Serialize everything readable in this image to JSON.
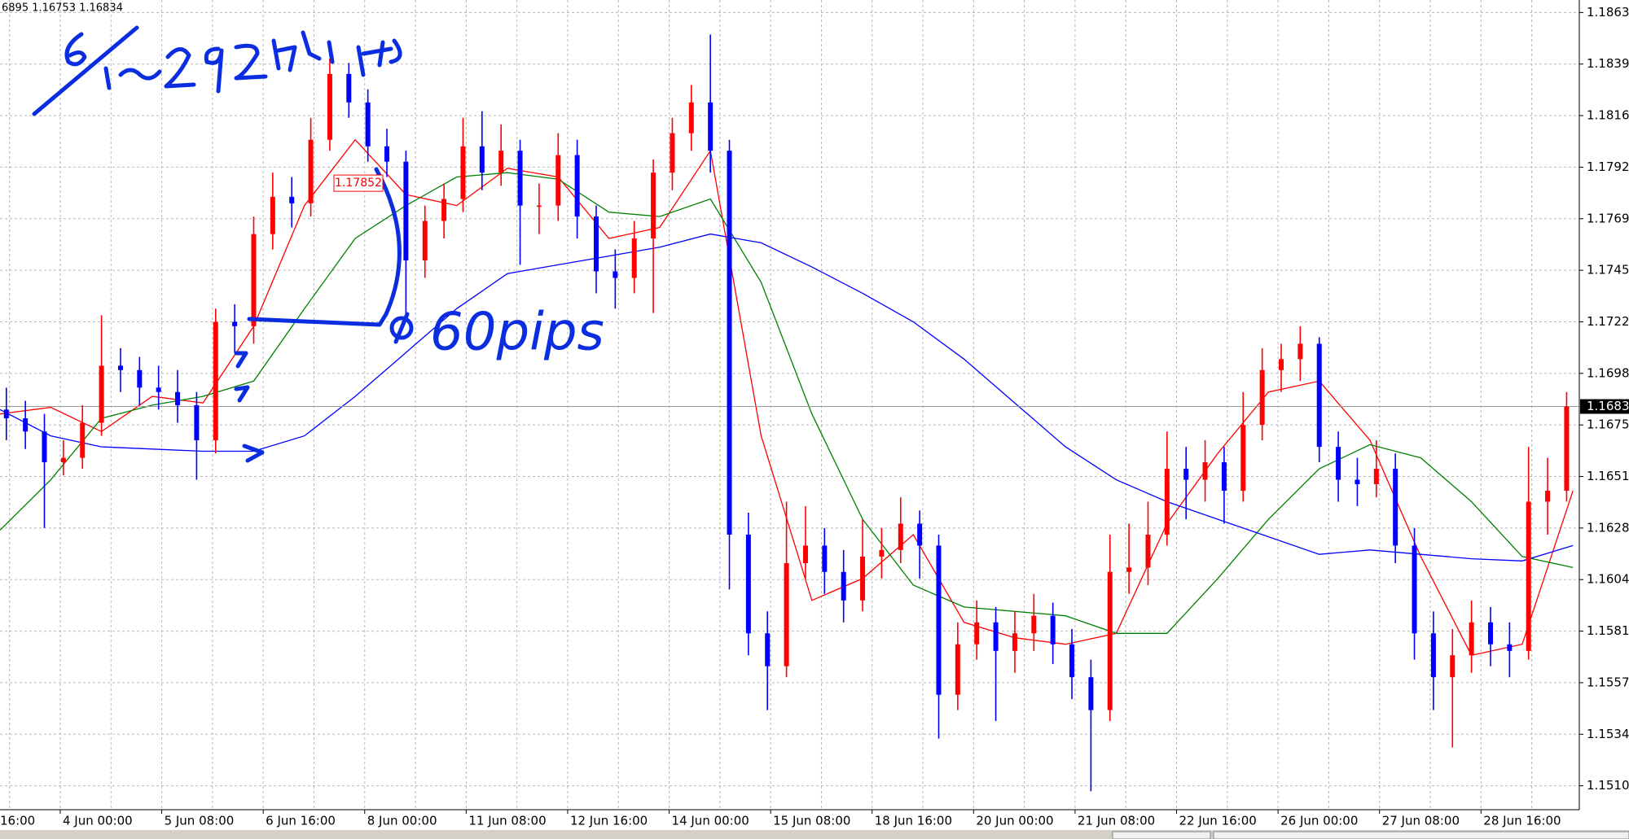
{
  "chart_data": {
    "type": "candlestick",
    "header": "6895 1.16753 1.16834",
    "xlim": [
      0,
      249
    ],
    "ylim": [
      1.14996,
      1.18687
    ],
    "xticks": [
      {
        "value": -6.5,
        "label": "16:00"
      },
      {
        "value": 9.5,
        "label": "4 Jun 00:00"
      },
      {
        "value": 25.5,
        "label": "5 Jun 08:00"
      },
      {
        "value": 41.5,
        "label": "6 Jun 16:00"
      },
      {
        "value": 57.5,
        "label": "8 Jun 00:00"
      },
      {
        "value": 73.5,
        "label": "11 Jun 08:00"
      },
      {
        "value": 89.5,
        "label": "12 Jun 16:00"
      },
      {
        "value": 105.5,
        "label": "14 Jun 00:00"
      },
      {
        "value": 121.5,
        "label": "15 Jun 08:00"
      },
      {
        "value": 137.5,
        "label": "18 Jun 16:00"
      },
      {
        "value": 153.5,
        "label": "20 Jun 00:00"
      },
      {
        "value": 169.5,
        "label": "21 Jun 08:00"
      },
      {
        "value": 185.5,
        "label": "22 Jun 16:00"
      },
      {
        "value": 201.5,
        "label": "26 Jun 00:00"
      },
      {
        "value": 217.5,
        "label": "27 Jun 08:00"
      },
      {
        "value": 233.5,
        "label": "28 Jun 16:00"
      }
    ],
    "yticks": [
      {
        "value": 1.1863,
        "label": "1.18630"
      },
      1.18395,
      {
        "value": 1.1816,
        "label": "1.18160"
      },
      1.17925,
      {
        "value": 1.1769,
        "label": "1.17690"
      },
      1.17455,
      {
        "value": 1.1722,
        "label": "1.17220"
      },
      1.16985,
      {
        "value": 1.1675,
        "label": "1.16750"
      },
      1.16515,
      {
        "value": 1.1628,
        "label": "1.16280"
      },
      1.16045,
      {
        "value": 1.1581,
        "label": "1.15810"
      },
      1.15575,
      {
        "value": 1.1534,
        "label": "1.15340"
      },
      1.15105
    ],
    "grid": true,
    "up_color": "#ff0000",
    "down_color": "#0000ff",
    "x": [
      1,
      4,
      7,
      10,
      13,
      16,
      19,
      22,
      25,
      28,
      31,
      34,
      37,
      40,
      43,
      46,
      49,
      52,
      55,
      58,
      61,
      64,
      67,
      70,
      73,
      76,
      79,
      82,
      85,
      88,
      91,
      94,
      97,
      100,
      103,
      106,
      109,
      112,
      115,
      118,
      121,
      124,
      127,
      130,
      133,
      136,
      139,
      142,
      145,
      148,
      151,
      154,
      157,
      160,
      163,
      166,
      169,
      172,
      175,
      178,
      181,
      184,
      187,
      190,
      193,
      196,
      199,
      202,
      205,
      208,
      211,
      214,
      217,
      220,
      223,
      226,
      229,
      232,
      235,
      238,
      241,
      244,
      247
    ],
    "open": [
      1.1682,
      1.1678,
      1.1672,
      1.1658,
      1.166,
      1.1676,
      1.1702,
      1.17,
      1.1692,
      1.169,
      1.1684,
      1.1668,
      1.1722,
      1.172,
      1.1762,
      1.1779,
      1.1776,
      1.1805,
      1.1835,
      1.1822,
      1.1802,
      1.1795,
      1.175,
      1.1768,
      1.1778,
      1.1802,
      1.179,
      1.18,
      1.1775,
      1.1775,
      1.1798,
      1.177,
      1.1745,
      1.1742,
      1.176,
      1.179,
      1.1808,
      1.1822,
      1.18,
      1.1625,
      1.158,
      1.1565,
      1.1612,
      1.162,
      1.1608,
      1.1595,
      1.1615,
      1.1618,
      1.163,
      1.162,
      1.1552,
      1.1575,
      1.1585,
      1.1572,
      1.158,
      1.1588,
      1.1575,
      1.156,
      1.1545,
      1.1608,
      1.161,
      1.1625,
      1.1655,
      1.165,
      1.1658,
      1.1645,
      1.1675,
      1.17,
      1.1705,
      1.1712,
      1.1665,
      1.165,
      1.1648,
      1.1655,
      1.162,
      1.158,
      1.156,
      1.157,
      1.1585,
      1.1575,
      1.1572,
      1.164,
      1.1645
    ],
    "high": [
      1.1692,
      1.1686,
      1.168,
      1.1668,
      1.1684,
      1.1725,
      1.171,
      1.1706,
      1.1702,
      1.17,
      1.169,
      1.1728,
      1.173,
      1.177,
      1.179,
      1.1788,
      1.1815,
      1.1842,
      1.184,
      1.1828,
      1.181,
      1.18,
      1.1775,
      1.1785,
      1.1815,
      1.1818,
      1.1812,
      1.1805,
      1.1785,
      1.1808,
      1.1805,
      1.1775,
      1.1755,
      1.1768,
      1.1796,
      1.1815,
      1.183,
      1.1853,
      1.1805,
      1.1635,
      1.159,
      1.164,
      1.1638,
      1.1628,
      1.1618,
      1.1632,
      1.1628,
      1.1642,
      1.1636,
      1.1625,
      1.1585,
      1.1595,
      1.1592,
      1.159,
      1.1598,
      1.1594,
      1.1582,
      1.1568,
      1.1625,
      1.163,
      1.164,
      1.1672,
      1.1665,
      1.1668,
      1.1665,
      1.169,
      1.171,
      1.1712,
      1.172,
      1.1715,
      1.1672,
      1.166,
      1.1668,
      1.1662,
      1.1628,
      1.159,
      1.1582,
      1.1595,
      1.1592,
      1.1585,
      1.1665,
      1.166,
      1.169
    ],
    "low": [
      1.1668,
      1.1664,
      1.1628,
      1.1652,
      1.1655,
      1.167,
      1.169,
      1.1684,
      1.1682,
      1.1676,
      1.165,
      1.1662,
      1.1708,
      1.1712,
      1.1755,
      1.1765,
      1.177,
      1.18,
      1.1815,
      1.1795,
      1.1788,
      1.1722,
      1.1742,
      1.176,
      1.1772,
      1.1782,
      1.1784,
      1.1748,
      1.1762,
      1.1768,
      1.176,
      1.1735,
      1.1728,
      1.1735,
      1.1726,
      1.1782,
      1.18,
      1.179,
      1.16,
      1.157,
      1.1545,
      1.156,
      1.1605,
      1.1598,
      1.1585,
      1.159,
      1.1605,
      1.1612,
      1.1605,
      1.1532,
      1.1545,
      1.1568,
      1.154,
      1.1562,
      1.1572,
      1.1566,
      1.155,
      1.1508,
      1.154,
      1.1598,
      1.1602,
      1.162,
      1.1632,
      1.164,
      1.163,
      1.164,
      1.1668,
      1.169,
      1.1695,
      1.1658,
      1.164,
      1.1638,
      1.1642,
      1.1612,
      1.1568,
      1.1545,
      1.1528,
      1.1562,
      1.1565,
      1.156,
      1.1568,
      1.1625,
      1.164
    ],
    "close": [
      1.1678,
      1.1672,
      1.1658,
      1.166,
      1.1676,
      1.1702,
      1.17,
      1.1692,
      1.169,
      1.1684,
      1.1668,
      1.1722,
      1.172,
      1.1762,
      1.1779,
      1.1776,
      1.1805,
      1.1835,
      1.1822,
      1.1802,
      1.1795,
      1.175,
      1.1768,
      1.1778,
      1.1802,
      1.179,
      1.18,
      1.1775,
      1.1775,
      1.1798,
      1.177,
      1.1745,
      1.1742,
      1.176,
      1.179,
      1.1808,
      1.1822,
      1.18,
      1.1625,
      1.158,
      1.1565,
      1.1612,
      1.162,
      1.1608,
      1.1595,
      1.1615,
      1.1618,
      1.163,
      1.162,
      1.1552,
      1.1575,
      1.1585,
      1.1572,
      1.158,
      1.1588,
      1.1575,
      1.156,
      1.1545,
      1.1608,
      1.161,
      1.1625,
      1.1655,
      1.165,
      1.1658,
      1.1645,
      1.1675,
      1.17,
      1.1705,
      1.1712,
      1.1665,
      1.165,
      1.1648,
      1.1655,
      1.162,
      1.158,
      1.156,
      1.157,
      1.1585,
      1.1575,
      1.1572,
      1.164,
      1.1645,
      1.16834
    ],
    "line_x": [
      0,
      8,
      16,
      24,
      32,
      40,
      48,
      56,
      64,
      72,
      80,
      88,
      96,
      104,
      112,
      120,
      128,
      136,
      144,
      152,
      160,
      168,
      176,
      184,
      192,
      200,
      208,
      216,
      224,
      232,
      240,
      248
    ],
    "lines": [
      {
        "color": "#ff0000",
        "values": [
          1.168,
          1.1683,
          1.1672,
          1.1688,
          1.1685,
          1.172,
          1.1775,
          1.1805,
          1.178,
          1.1775,
          1.1792,
          1.1788,
          1.176,
          1.1765,
          1.18,
          1.167,
          1.1595,
          1.1605,
          1.1625,
          1.1585,
          1.1578,
          1.1575,
          1.158,
          1.163,
          1.1662,
          1.169,
          1.1695,
          1.1668,
          1.1615,
          1.157,
          1.1575,
          1.1645
        ]
      },
      {
        "color": "#008000",
        "values": [
          1.1627,
          1.165,
          1.1678,
          1.1684,
          1.1688,
          1.1695,
          1.1728,
          1.176,
          1.1775,
          1.1788,
          1.179,
          1.1787,
          1.1772,
          1.177,
          1.1778,
          1.174,
          1.168,
          1.1632,
          1.1602,
          1.1592,
          1.159,
          1.1588,
          1.158,
          1.158,
          1.1605,
          1.1632,
          1.1655,
          1.1666,
          1.166,
          1.164,
          1.1615,
          1.161
        ]
      },
      {
        "color": "#0000ff",
        "values": [
          1.1682,
          1.167,
          1.1665,
          1.1664,
          1.1663,
          1.1663,
          1.167,
          1.1688,
          1.1708,
          1.1728,
          1.1744,
          1.1748,
          1.1752,
          1.1756,
          1.1762,
          1.1758,
          1.1747,
          1.1735,
          1.1722,
          1.1705,
          1.1685,
          1.1665,
          1.165,
          1.164,
          1.1632,
          1.1624,
          1.1616,
          1.1618,
          1.1616,
          1.1614,
          1.1613,
          1.162
        ]
      }
    ],
    "last_price": 1.16834,
    "price_tag": 1.17852,
    "annotation": "60pips"
  }
}
